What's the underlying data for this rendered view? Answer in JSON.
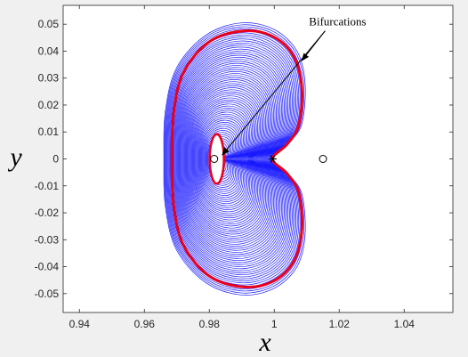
{
  "chart_data": {
    "type": "line",
    "title": "",
    "xlabel": "x",
    "ylabel": "y",
    "xlim": [
      0.935,
      1.055
    ],
    "ylim": [
      -0.057,
      0.057
    ],
    "x_ticks": [
      0.94,
      0.96,
      0.98,
      1.0,
      1.02,
      1.04
    ],
    "x_tick_labels": [
      "0.94",
      "0.96",
      "0.98",
      "1",
      "1.02",
      "1.04"
    ],
    "y_ticks": [
      0.05,
      0.04,
      0.03,
      0.02,
      0.01,
      0,
      -0.01,
      -0.02,
      -0.03,
      -0.04,
      -0.05
    ],
    "y_tick_labels": [
      "0.05",
      "0.04",
      "0.03",
      "0.02",
      "0.01",
      "0",
      "-0.01",
      "-0.02",
      "-0.03",
      "-0.04",
      "-0.05"
    ],
    "grid": false,
    "series": [
      {
        "kind": "orbit-family",
        "color": "#0000ff",
        "description_points": "nested closed curves (kidney shaped) around the primary",
        "outer_boundary": {
          "x": [
            0.9995,
            1.0045,
            1.0085,
            1.0095,
            1.007,
            1.0,
            0.99,
            0.979,
            0.97,
            0.9665,
            0.966,
            0.9665,
            0.97,
            0.979,
            0.99,
            1.0,
            1.007,
            1.0095,
            1.0085,
            1.0045,
            0.9995
          ],
          "y": [
            0.0,
            0.006,
            0.013,
            0.028,
            0.04,
            0.048,
            0.0505,
            0.046,
            0.034,
            0.018,
            0.0,
            -0.018,
            -0.034,
            -0.046,
            -0.0505,
            -0.048,
            -0.04,
            -0.028,
            -0.013,
            -0.006,
            0.0
          ]
        }
      },
      {
        "kind": "bifurcation-orbit-outer",
        "color": "#e8001c",
        "x": [
          0.9995,
          1.004,
          1.0075,
          1.0085,
          1.006,
          0.9995,
          0.9905,
          0.98,
          0.972,
          0.969,
          0.9685,
          0.969,
          0.972,
          0.98,
          0.9905,
          0.9995,
          1.006,
          1.0085,
          1.0075,
          1.004,
          0.9995
        ],
        "y": [
          0.0,
          0.0055,
          0.0125,
          0.026,
          0.038,
          0.0455,
          0.0475,
          0.0435,
          0.032,
          0.017,
          0.0,
          -0.017,
          -0.032,
          -0.0435,
          -0.0475,
          -0.0455,
          -0.038,
          -0.026,
          -0.0125,
          -0.0055,
          0.0
        ]
      },
      {
        "kind": "bifurcation-orbit-inner",
        "color": "#e8001c",
        "center": [
          0.9823,
          0.0
        ],
        "semi_axes": [
          0.0022,
          0.0092
        ]
      }
    ],
    "markers": [
      {
        "kind": "open-circle",
        "x": 0.9815,
        "y": 0.0
      },
      {
        "kind": "asterisk",
        "x": 0.9995,
        "y": 0.0
      },
      {
        "kind": "open-circle",
        "x": 1.015,
        "y": 0.0
      }
    ],
    "annotations": [
      {
        "text": "Bifurcations",
        "text_at": [
          1.0195,
          0.0495
        ],
        "arrows_to": [
          [
            1.0085,
            0.0365
          ],
          [
            0.984,
            0.0015
          ]
        ]
      }
    ]
  }
}
